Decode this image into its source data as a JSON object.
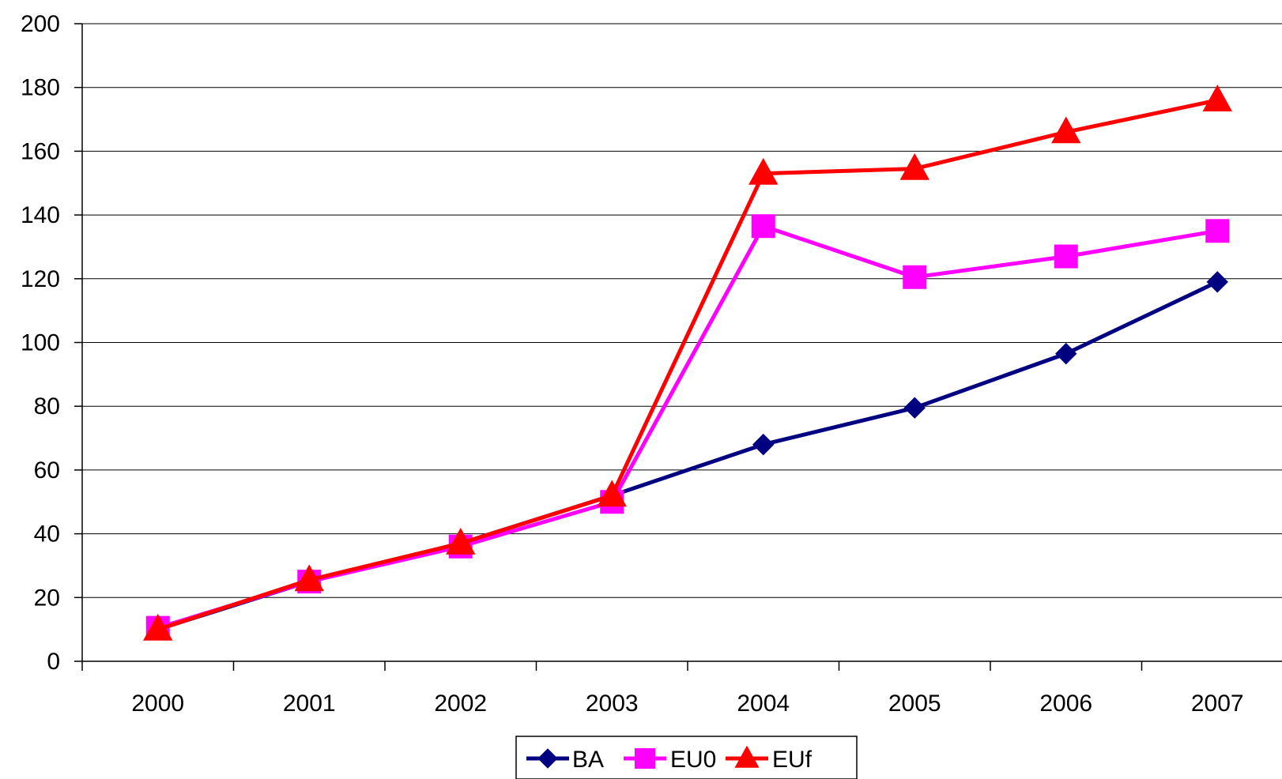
{
  "chart_data": {
    "type": "line",
    "title": "",
    "xlabel": "",
    "ylabel": "",
    "categories": [
      "2000",
      "2001",
      "2002",
      "2003",
      "2004",
      "2005",
      "2006",
      "2007"
    ],
    "ylim": [
      0,
      200
    ],
    "yticks": [
      "0",
      "20",
      "40",
      "60",
      "80",
      "100",
      "120",
      "140",
      "160",
      "180",
      "200"
    ],
    "grid": "horizontal",
    "legend_position": "bottom",
    "series": [
      {
        "name": "BA",
        "color": "#000080",
        "marker": "diamond",
        "values": [
          10,
          25,
          37,
          52,
          68,
          79.5,
          96.5,
          119
        ]
      },
      {
        "name": "EU0",
        "color": "#FF00FF",
        "marker": "square",
        "values": [
          10.5,
          25,
          36,
          50,
          136.5,
          120.5,
          127,
          135
        ]
      },
      {
        "name": "EUf",
        "color": "#FF0000",
        "marker": "triangle",
        "values": [
          10,
          25.5,
          37,
          52,
          153,
          154.5,
          166,
          176
        ]
      }
    ]
  }
}
